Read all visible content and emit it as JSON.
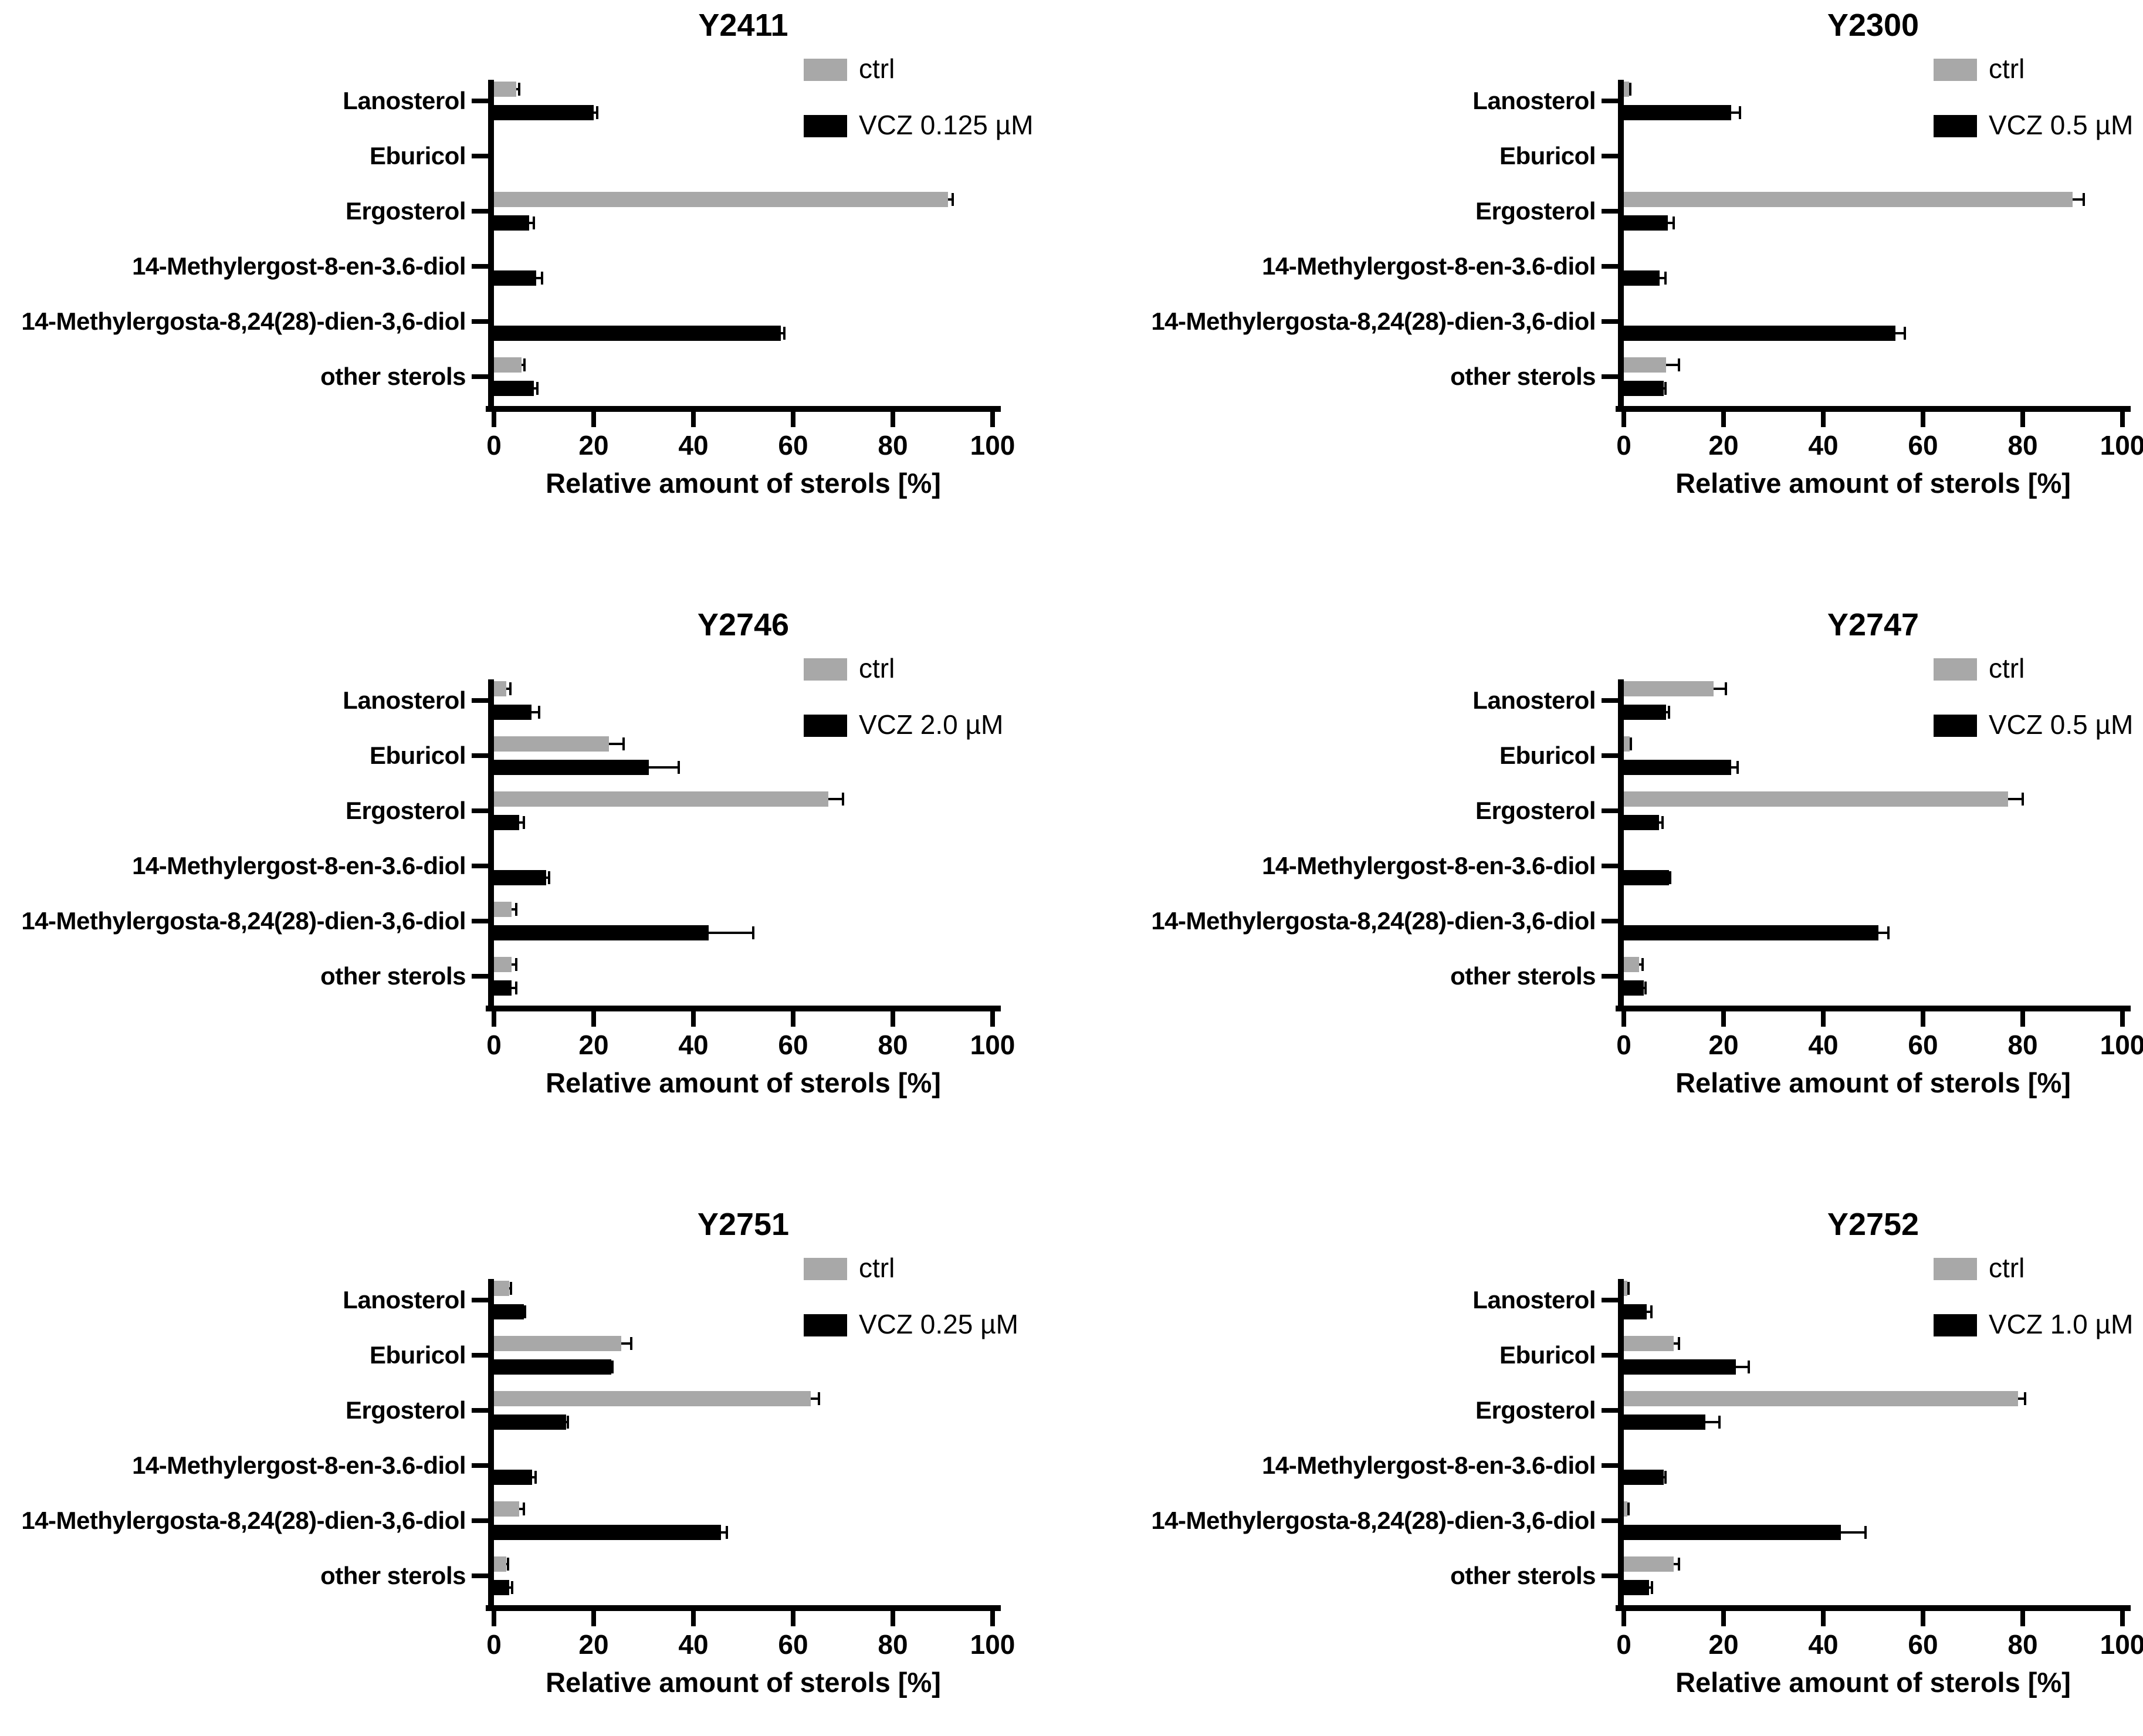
{
  "figure": {
    "background": "#ffffff",
    "xlabel": "Relative amount of sterols [%]",
    "xlim": [
      0,
      100
    ],
    "x_ticks": [
      0,
      20,
      40,
      60,
      80,
      100
    ],
    "grid": false,
    "legend_position": "top-right",
    "categories": [
      "Lanosterol",
      "Eburicol",
      "Ergosterol",
      "14-Methylergost-8-en-3.6-diol",
      "14-Methylergosta-8,24(28)-dien-3,6-diol",
      "other sterols"
    ],
    "colors": {
      "ctrl": "#a8a8a8",
      "treated": "#000000",
      "axis": "#000000",
      "error_bar": "#000000",
      "text": "#000000"
    }
  },
  "chart_data": [
    {
      "type": "bar",
      "orientation": "horizontal",
      "title": "Y2411",
      "xlabel": "Relative amount of sterols [%]",
      "xlim": [
        0,
        100
      ],
      "categories": [
        "Lanosterol",
        "Eburicol",
        "Ergosterol",
        "14-Methylergost-8-en-3.6-diol",
        "14-Methylergosta-8,24(28)-dien-3,6-diol",
        "other sterols"
      ],
      "series": [
        {
          "name": "ctrl",
          "color": "#a8a8a8",
          "values": [
            4.5,
            0,
            91,
            0,
            0,
            5.5
          ],
          "errors": [
            0.6,
            0,
            1.0,
            0,
            0,
            0.6
          ]
        },
        {
          "name": "VCZ 0.125 µM",
          "color": "#000000",
          "values": [
            20,
            0,
            7,
            8.5,
            57.5,
            8
          ],
          "errors": [
            0.7,
            0,
            1.0,
            1.2,
            0.7,
            0.7
          ]
        }
      ]
    },
    {
      "type": "bar",
      "orientation": "horizontal",
      "title": "Y2300",
      "xlabel": "Relative amount of sterols [%]",
      "xlim": [
        0,
        100
      ],
      "categories": [
        "Lanosterol",
        "Eburicol",
        "Ergosterol",
        "14-Methylergost-8-en-3.6-diol",
        "14-Methylergosta-8,24(28)-dien-3,6-diol",
        "other sterols"
      ],
      "series": [
        {
          "name": "ctrl",
          "color": "#a8a8a8",
          "values": [
            1.0,
            0,
            90,
            0,
            0,
            8.5
          ],
          "errors": [
            0.3,
            0,
            2.2,
            0,
            0,
            2.5
          ]
        },
        {
          "name": "VCZ 0.5 µM",
          "color": "#000000",
          "values": [
            21.5,
            0,
            8.8,
            7.2,
            54.5,
            8
          ],
          "errors": [
            1.8,
            0,
            1.2,
            1.2,
            1.8,
            0.4
          ]
        }
      ]
    },
    {
      "type": "bar",
      "orientation": "horizontal",
      "title": "Y2746",
      "xlabel": "Relative amount of sterols [%]",
      "xlim": [
        0,
        100
      ],
      "categories": [
        "Lanosterol",
        "Eburicol",
        "Ergosterol",
        "14-Methylergost-8-en-3.6-diol",
        "14-Methylergosta-8,24(28)-dien-3,6-diol",
        "other sterols"
      ],
      "series": [
        {
          "name": "ctrl",
          "color": "#a8a8a8",
          "values": [
            2.5,
            23,
            67,
            0,
            3.5,
            3.5
          ],
          "errors": [
            0.8,
            3.0,
            3.0,
            0,
            1.0,
            1.0
          ]
        },
        {
          "name": "VCZ 2.0 µM",
          "color": "#000000",
          "values": [
            7.5,
            31,
            5,
            10.5,
            43,
            3.5
          ],
          "errors": [
            1.5,
            6.0,
            1.0,
            0.5,
            9.0,
            1.0
          ]
        }
      ]
    },
    {
      "type": "bar",
      "orientation": "horizontal",
      "title": "Y2747",
      "xlabel": "Relative amount of sterols [%]",
      "xlim": [
        0,
        100
      ],
      "categories": [
        "Lanosterol",
        "Eburicol",
        "Ergosterol",
        "14-Methylergost-8-en-3.6-diol",
        "14-Methylergosta-8,24(28)-dien-3,6-diol",
        "other sterols"
      ],
      "series": [
        {
          "name": "ctrl",
          "color": "#a8a8a8",
          "values": [
            18,
            1.2,
            77,
            0,
            0,
            3
          ],
          "errors": [
            2.5,
            0.2,
            3.0,
            0,
            0,
            0.8
          ]
        },
        {
          "name": "VCZ 0.5 µM",
          "color": "#000000",
          "values": [
            8.5,
            21.5,
            7,
            9,
            51,
            4
          ],
          "errors": [
            0.5,
            1.3,
            0.8,
            0.3,
            2.0,
            0.3
          ]
        }
      ]
    },
    {
      "type": "bar",
      "orientation": "horizontal",
      "title": "Y2751",
      "xlabel": "Relative amount of sterols [%]",
      "xlim": [
        0,
        100
      ],
      "categories": [
        "Lanosterol",
        "Eburicol",
        "Ergosterol",
        "14-Methylergost-8-en-3.6-diol",
        "14-Methylergosta-8,24(28)-dien-3,6-diol",
        "other sterols"
      ],
      "series": [
        {
          "name": "ctrl",
          "color": "#a8a8a8",
          "values": [
            3,
            25.5,
            63.5,
            0,
            5,
            2.5
          ],
          "errors": [
            0.4,
            2.0,
            1.7,
            0,
            1.0,
            0.3
          ]
        },
        {
          "name": "VCZ 0.25 µM",
          "color": "#000000",
          "values": [
            6,
            23.5,
            14.5,
            7.7,
            45.5,
            3
          ],
          "errors": [
            0.2,
            0.3,
            0.3,
            0.6,
            1.2,
            0.6
          ]
        }
      ]
    },
    {
      "type": "bar",
      "orientation": "horizontal",
      "title": "Y2752",
      "xlabel": "Relative amount of sterols [%]",
      "xlim": [
        0,
        100
      ],
      "categories": [
        "Lanosterol",
        "Eburicol",
        "Ergosterol",
        "14-Methylergost-8-en-3.6-diol",
        "14-Methylergosta-8,24(28)-dien-3,6-diol",
        "other sterols"
      ],
      "series": [
        {
          "name": "ctrl",
          "color": "#a8a8a8",
          "values": [
            0.7,
            10,
            79,
            0,
            0.7,
            10
          ],
          "errors": [
            0.2,
            1.0,
            1.5,
            0,
            0.2,
            1.0
          ]
        },
        {
          "name": "VCZ 1.0 µM",
          "color": "#000000",
          "values": [
            4.6,
            22.5,
            16.3,
            8,
            43.5,
            5
          ],
          "errors": [
            0.9,
            2.6,
            2.9,
            0.3,
            5.0,
            0.6
          ]
        }
      ]
    }
  ]
}
